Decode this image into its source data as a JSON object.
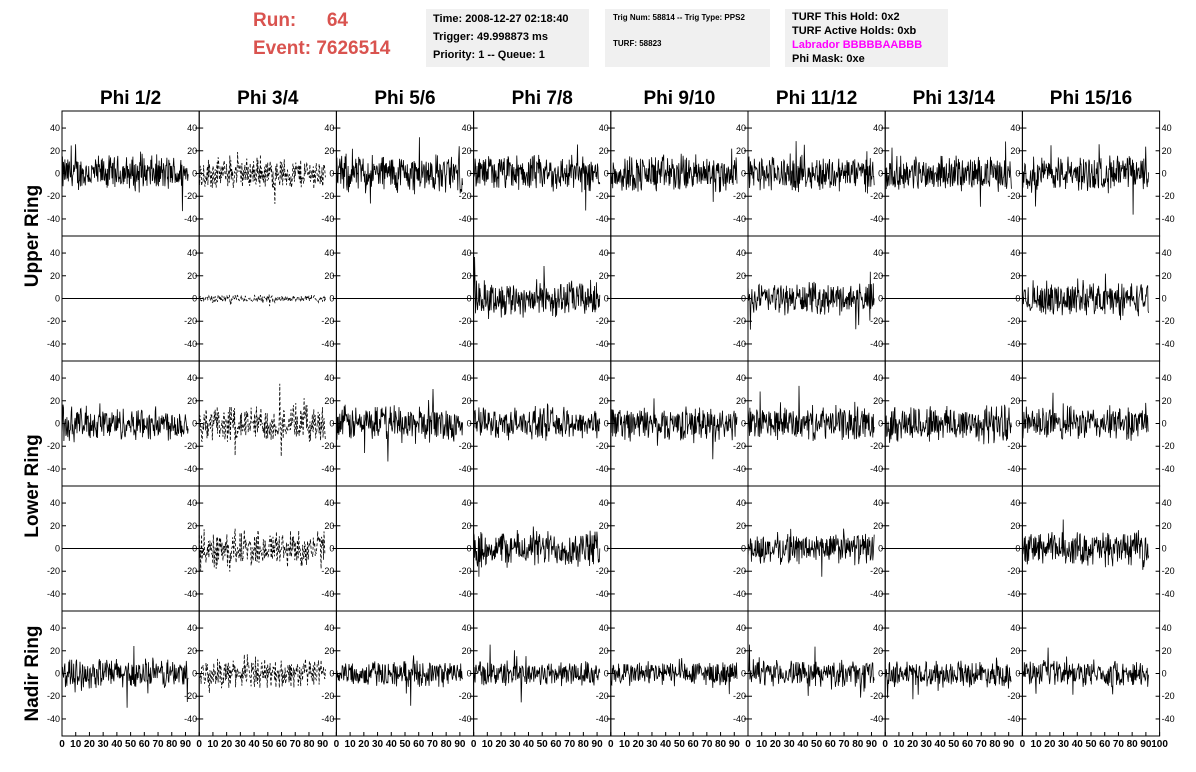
{
  "header": {
    "run_label": "Run:",
    "run_value": "64",
    "event_label": "Event:",
    "event_value": "7626514",
    "time_line": "Time: 2008-12-27 02:18:40",
    "trigger_line": "Trigger: 49.998873 ms",
    "priority_line": "Priority: 1 -- Queue: 1",
    "trig_line": "Trig Num: 58814 -- Trig Type: PPS2",
    "turf_line": "TURF: 58823",
    "turf_hold_line": "TURF This Hold: 0x2",
    "turf_active_line": "TURF Active Holds: 0xb",
    "labrador_line": "Labrador BBBBBAABBB",
    "phi_mask_line": "Phi Mask: 0xe",
    "labrador_color": "#ff00ff",
    "run_color": "#d9534f"
  },
  "chart_data": {
    "type": "line",
    "columns": [
      "Phi 1/2",
      "Phi 3/4",
      "Phi 5/6",
      "Phi 7/8",
      "Phi 9/10",
      "Phi 11/12",
      "Phi 13/14",
      "Phi 15/16"
    ],
    "ring_labels": [
      {
        "label": "Upper Ring",
        "rows": [
          0,
          1
        ]
      },
      {
        "label": "Lower Ring",
        "rows": [
          2,
          3
        ]
      },
      {
        "label": "Nadir Ring",
        "rows": [
          4
        ]
      }
    ],
    "y_ticks": [
      "40",
      "20",
      "0",
      "-20",
      "-40"
    ],
    "y_tick_values": [
      40,
      20,
      0,
      -20,
      -40
    ],
    "ylim": [
      -55,
      55
    ],
    "xlim": [
      0,
      100
    ],
    "x_ticks": [
      "0",
      "10",
      "20",
      "30",
      "40",
      "50",
      "60",
      "70",
      "80",
      "90",
      "100"
    ],
    "x_tick_values": [
      0,
      10,
      20,
      30,
      40,
      50,
      60,
      70,
      80,
      90,
      100
    ],
    "waveform_x_range": [
      0,
      92
    ],
    "panels": [
      [
        {
          "style": "solid",
          "amplitude": 14
        },
        {
          "style": "dashed",
          "amplitude": 12
        },
        {
          "style": "solid",
          "amplitude": 15
        },
        {
          "style": "solid",
          "amplitude": 14
        },
        {
          "style": "solid",
          "amplitude": 15
        },
        {
          "style": "solid",
          "amplitude": 14
        },
        {
          "style": "solid",
          "amplitude": 13
        },
        {
          "style": "solid",
          "amplitude": 14
        }
      ],
      [
        {
          "style": "flat",
          "amplitude": 0
        },
        {
          "style": "dashed",
          "amplitude": 3
        },
        {
          "style": "flat",
          "amplitude": 0
        },
        {
          "style": "solid",
          "amplitude": 14
        },
        {
          "style": "flat",
          "amplitude": 0
        },
        {
          "style": "solid",
          "amplitude": 12
        },
        {
          "style": "flat",
          "amplitude": 0
        },
        {
          "style": "solid",
          "amplitude": 13
        }
      ],
      [
        {
          "style": "solid",
          "amplitude": 13
        },
        {
          "style": "dashed",
          "amplitude": 14
        },
        {
          "style": "solid",
          "amplitude": 14
        },
        {
          "style": "solid",
          "amplitude": 12
        },
        {
          "style": "solid",
          "amplitude": 13
        },
        {
          "style": "solid",
          "amplitude": 13
        },
        {
          "style": "solid",
          "amplitude": 15
        },
        {
          "style": "solid",
          "amplitude": 13
        }
      ],
      [
        {
          "style": "flat",
          "amplitude": 0
        },
        {
          "style": "dashed",
          "amplitude": 15
        },
        {
          "style": "flat",
          "amplitude": 0
        },
        {
          "style": "solid",
          "amplitude": 14
        },
        {
          "style": "flat",
          "amplitude": 0
        },
        {
          "style": "solid",
          "amplitude": 12
        },
        {
          "style": "flat",
          "amplitude": 0
        },
        {
          "style": "solid",
          "amplitude": 13
        }
      ],
      [
        {
          "style": "solid",
          "amplitude": 12
        },
        {
          "style": "dashed",
          "amplitude": 11
        },
        {
          "style": "solid",
          "amplitude": 10
        },
        {
          "style": "solid",
          "amplitude": 10
        },
        {
          "style": "solid",
          "amplitude": 10
        },
        {
          "style": "solid",
          "amplitude": 10
        },
        {
          "style": "solid",
          "amplitude": 10
        },
        {
          "style": "solid",
          "amplitude": 10
        }
      ]
    ]
  }
}
